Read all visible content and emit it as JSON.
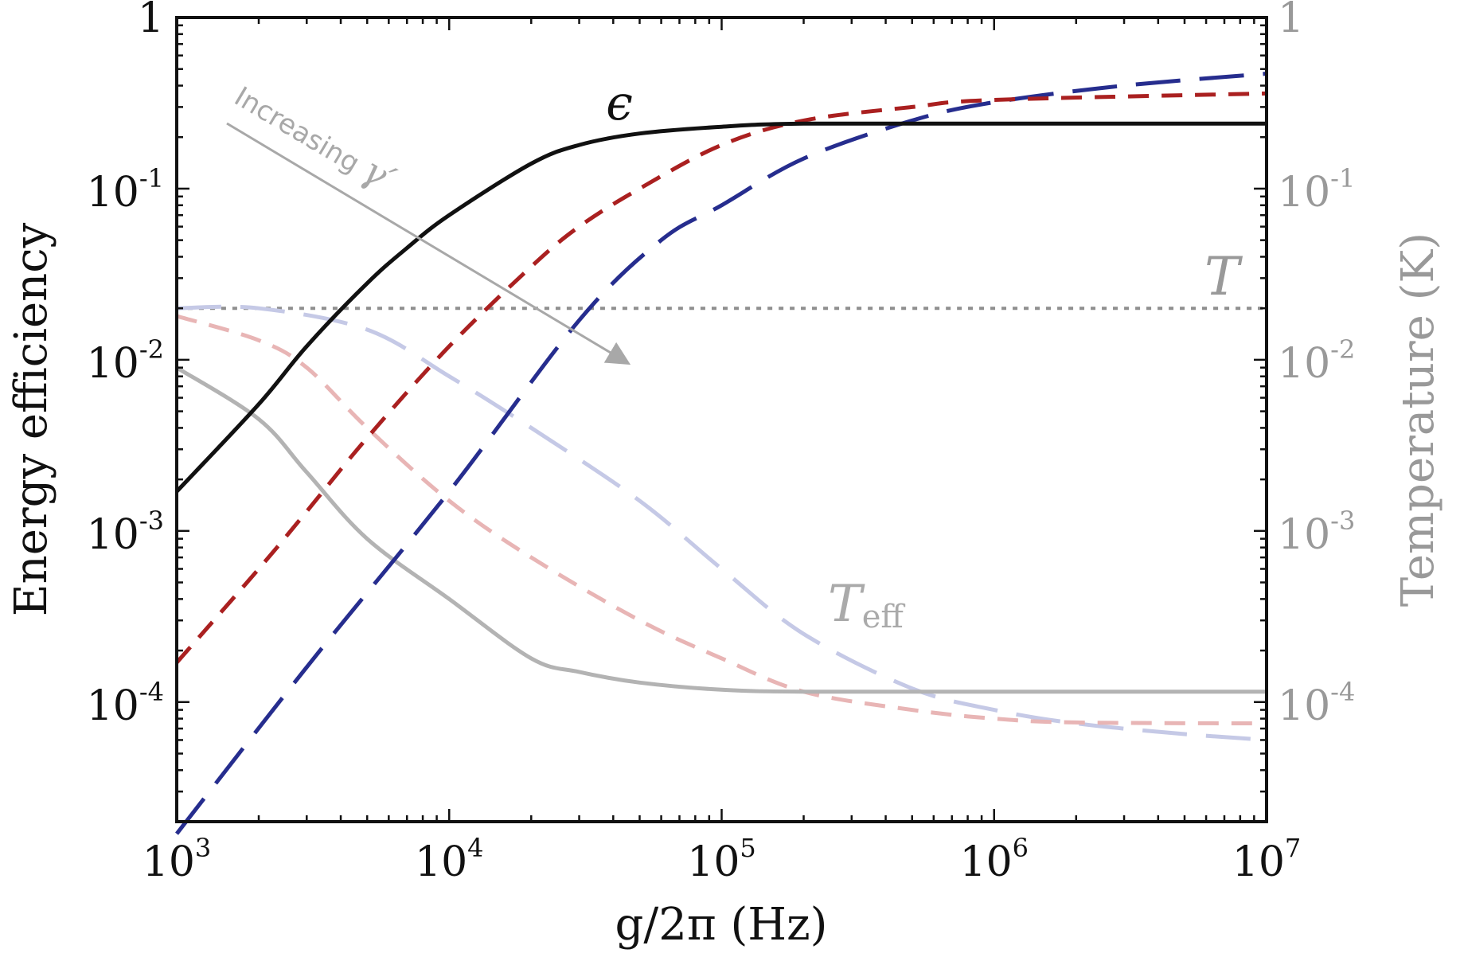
{
  "chart_data": {
    "type": "line",
    "xlabel": "g/2π (Hz)",
    "ylabel_left": "Energy efficiency",
    "ylabel_right": "Temperature (K)",
    "x_scale": "log",
    "y_scale": "log",
    "xlim": [
      1000,
      10000000
    ],
    "ylim_left": [
      2e-05,
      1
    ],
    "ylim_right": [
      2e-05,
      1
    ],
    "x_ticks": [
      {
        "base": "10",
        "exp": "3"
      },
      {
        "base": "10",
        "exp": "4"
      },
      {
        "base": "10",
        "exp": "5"
      },
      {
        "base": "10",
        "exp": "6"
      },
      {
        "base": "10",
        "exp": "7"
      }
    ],
    "y_ticks_left": [
      {
        "base": "1",
        "exp": ""
      },
      {
        "base": "10",
        "exp": "-1"
      },
      {
        "base": "10",
        "exp": "-2"
      },
      {
        "base": "10",
        "exp": "-3"
      },
      {
        "base": "10",
        "exp": "-4"
      }
    ],
    "y_ticks_right": [
      {
        "base": "1",
        "exp": ""
      },
      {
        "base": "10",
        "exp": "-1"
      },
      {
        "base": "10",
        "exp": "-2"
      },
      {
        "base": "10",
        "exp": "-3"
      },
      {
        "base": "10",
        "exp": "-4"
      }
    ],
    "labels": {
      "epsilon": "ϵ",
      "T": "T",
      "Teff_main": "T",
      "Teff_sub": "eff",
      "increasing": "Increasing",
      "gamma": "γ′"
    },
    "series": [
      {
        "name": "efficiency-black",
        "color": "#111111",
        "dash": "solid",
        "x": [
          1000,
          2000,
          3000,
          5000,
          7000,
          10000,
          20000,
          30000,
          50000,
          100000,
          200000,
          1000000,
          10000000
        ],
        "y": [
          0.0017,
          0.0055,
          0.012,
          0.028,
          0.045,
          0.07,
          0.14,
          0.18,
          0.21,
          0.23,
          0.24,
          0.24,
          0.24
        ]
      },
      {
        "name": "efficiency-red",
        "color": "#aa2020",
        "dash": "medium",
        "x": [
          1000,
          2000,
          3000,
          5000,
          10000,
          20000,
          30000,
          50000,
          100000,
          200000,
          500000,
          1000000,
          10000000
        ],
        "y": [
          0.00017,
          0.0006,
          0.0013,
          0.0035,
          0.012,
          0.035,
          0.06,
          0.1,
          0.18,
          0.25,
          0.3,
          0.33,
          0.36
        ]
      },
      {
        "name": "efficiency-blue",
        "color": "#262d8e",
        "dash": "long",
        "x": [
          1000,
          3000,
          10000,
          30000,
          60000,
          100000,
          200000,
          500000,
          1000000,
          3000000,
          10000000
        ],
        "y": [
          1.7e-05,
          0.00016,
          0.0017,
          0.017,
          0.05,
          0.08,
          0.15,
          0.25,
          0.32,
          0.4,
          0.47
        ]
      },
      {
        "name": "T-dotted",
        "color": "#8f8f8f",
        "dash": "dotted",
        "x": [
          1000,
          10000000
        ],
        "y": [
          0.02,
          0.02
        ]
      },
      {
        "name": "Teff-gray",
        "color": "#b3b3b3",
        "dash": "solid",
        "x": [
          1000,
          2000,
          3000,
          5000,
          10000,
          20000,
          30000,
          50000,
          100000,
          200000,
          1000000,
          10000000
        ],
        "y": [
          0.009,
          0.0045,
          0.0022,
          0.0009,
          0.0004,
          0.00018,
          0.00015,
          0.00013,
          0.000118,
          0.000115,
          0.000115,
          0.000115
        ]
      },
      {
        "name": "Teff-red",
        "color": "#e8b5b5",
        "dash": "medium",
        "x": [
          1000,
          2000,
          3000,
          5000,
          10000,
          20000,
          50000,
          100000,
          200000,
          500000,
          1000000,
          2000000,
          10000000
        ],
        "y": [
          0.018,
          0.013,
          0.009,
          0.004,
          0.0015,
          0.0007,
          0.0003,
          0.00018,
          0.000115,
          9e-05,
          8e-05,
          7.6e-05,
          7.5e-05
        ]
      },
      {
        "name": "Teff-blue",
        "color": "#c5c9e6",
        "dash": "long",
        "x": [
          1000,
          2000,
          5000,
          10000,
          20000,
          50000,
          100000,
          200000,
          500000,
          1000000,
          2000000,
          5000000,
          10000000
        ],
        "y": [
          0.02,
          0.02,
          0.015,
          0.008,
          0.004,
          0.0015,
          0.0006,
          0.00025,
          0.00012,
          9e-05,
          7.5e-05,
          6.5e-05,
          6e-05
        ]
      }
    ]
  }
}
